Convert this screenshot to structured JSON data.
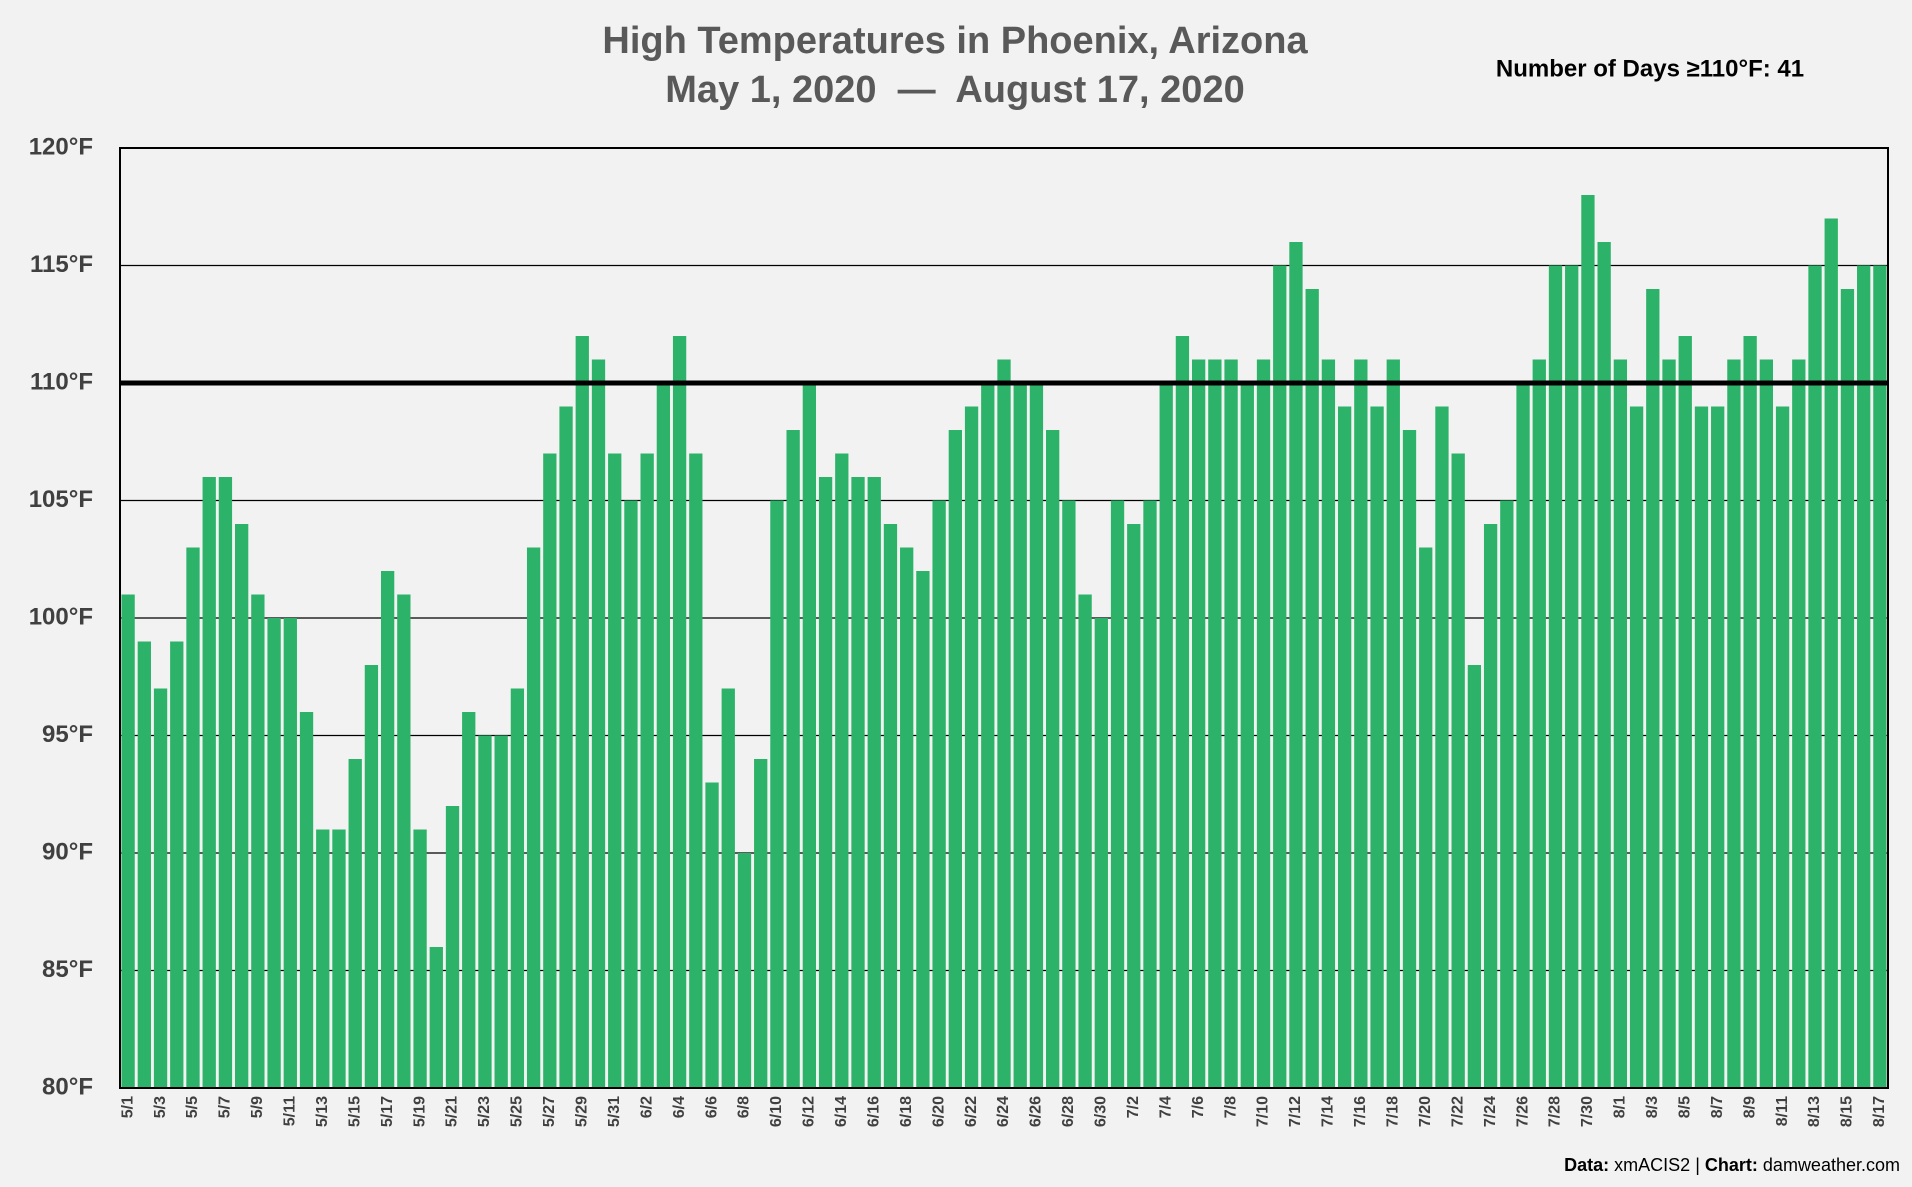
{
  "chart_data": {
    "type": "bar",
    "title": "High Temperatures in Phoenix, Arizona",
    "subtitle": "May 1, 2020  —  August 17, 2020",
    "annotation": "Number of Days ≥110°F: 41",
    "footer": {
      "source_label": "Data:",
      "source": "xmACIS2",
      "separator": "|",
      "credit_label": "Chart:",
      "credit": "damweather.com"
    },
    "color": "#2db369",
    "threshold": 110,
    "grid": true,
    "ylim": [
      80,
      120
    ],
    "yticks": [
      {
        "value": 80,
        "label": "80°F"
      },
      {
        "value": 85,
        "label": "85°F"
      },
      {
        "value": 90,
        "label": "90°F"
      },
      {
        "value": 95,
        "label": "95°F"
      },
      {
        "value": 100,
        "label": "100°F"
      },
      {
        "value": 105,
        "label": "105°F"
      },
      {
        "value": 110,
        "label": "110°F"
      },
      {
        "value": 115,
        "label": "115°F"
      },
      {
        "value": 120,
        "label": "120°F"
      }
    ],
    "categories": [
      "5/1",
      null,
      "5/3",
      null,
      "5/5",
      null,
      "5/7",
      null,
      "5/9",
      null,
      "5/11",
      null,
      "5/13",
      null,
      "5/15",
      null,
      "5/17",
      null,
      "5/19",
      null,
      "5/21",
      null,
      "5/23",
      null,
      "5/25",
      null,
      "5/27",
      null,
      "5/29",
      null,
      "5/31",
      null,
      "6/2",
      null,
      "6/4",
      null,
      "6/6",
      null,
      "6/8",
      null,
      "6/10",
      null,
      "6/12",
      null,
      "6/14",
      null,
      "6/16",
      null,
      "6/18",
      null,
      "6/20",
      null,
      "6/22",
      null,
      "6/24",
      null,
      "6/26",
      null,
      "6/28",
      null,
      "6/30",
      null,
      "7/2",
      null,
      "7/4",
      null,
      "7/6",
      null,
      "7/8",
      null,
      "7/10",
      null,
      "7/12",
      null,
      "7/14",
      null,
      "7/16",
      null,
      "7/18",
      null,
      "7/20",
      null,
      "7/22",
      null,
      "7/24",
      null,
      "7/26",
      null,
      "7/28",
      null,
      "7/30",
      null,
      "8/1",
      null,
      "8/3",
      null,
      "8/5",
      null,
      "8/7",
      null,
      "8/9",
      null,
      "8/11",
      null,
      "8/13",
      null,
      "8/15",
      null,
      "8/17"
    ],
    "values": [
      101,
      99,
      97,
      99,
      103,
      106,
      106,
      104,
      101,
      100,
      100,
      96,
      91,
      91,
      94,
      98,
      102,
      101,
      91,
      86,
      92,
      96,
      95,
      95,
      97,
      103,
      107,
      109,
      112,
      111,
      107,
      105,
      107,
      110,
      112,
      107,
      93,
      97,
      90,
      94,
      105,
      108,
      110,
      106,
      107,
      106,
      106,
      104,
      103,
      102,
      105,
      108,
      109,
      110,
      111,
      110,
      110,
      108,
      105,
      101,
      100,
      105,
      104,
      105,
      110,
      112,
      111,
      111,
      111,
      110,
      111,
      115,
      116,
      114,
      111,
      109,
      111,
      109,
      111,
      108,
      103,
      109,
      107,
      98,
      104,
      105,
      110,
      111,
      115,
      115,
      118,
      116,
      111,
      109,
      114,
      111,
      112,
      109,
      109,
      111,
      112,
      111,
      109,
      111,
      115,
      117,
      114,
      115,
      115
    ]
  }
}
